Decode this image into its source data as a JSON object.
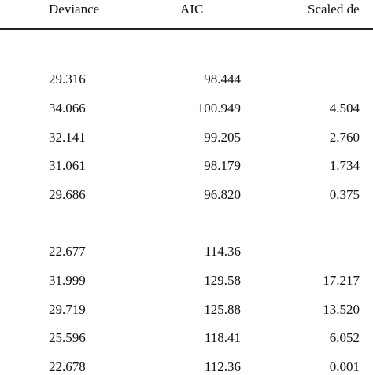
{
  "table": {
    "header": [
      "Deviance",
      "AIC",
      "Scaled de"
    ],
    "groups": [
      {
        "rows": [
          [
            "29.316",
            "98.444",
            null
          ],
          [
            "34.066",
            "100.949",
            "4.504"
          ],
          [
            "32.141",
            "99.205",
            "2.760"
          ],
          [
            "31.061",
            "98.179",
            "1.734"
          ],
          [
            "29.686",
            "96.820",
            "0.375"
          ]
        ]
      },
      {
        "rows": [
          [
            "22.677",
            "114.36",
            null
          ],
          [
            "31.999",
            "129.58",
            "17.217"
          ],
          [
            "29.719",
            "125.88",
            "13.520"
          ],
          [
            "25.596",
            "118.41",
            "6.052"
          ],
          [
            "22.678",
            "112.36",
            "0.001"
          ]
        ]
      }
    ]
  }
}
